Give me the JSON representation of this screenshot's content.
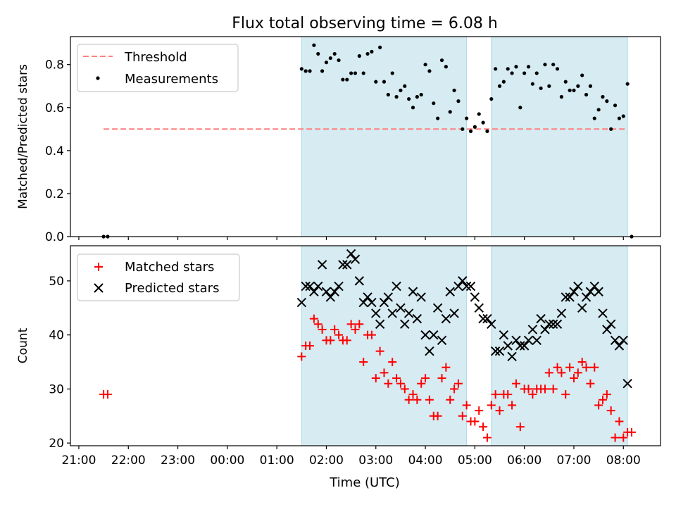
{
  "chart_data": [
    {
      "type": "scatter",
      "title": "Flux total observing time = 6.08 h",
      "xlabel": "",
      "ylabel": "Matched/Predicted stars",
      "ylim": [
        0,
        0.93
      ],
      "y_ticks": [
        "0.0",
        "0.2",
        "0.4",
        "0.6",
        "0.8"
      ],
      "y_tick_values": [
        0,
        0.2,
        0.4,
        0.6,
        0.8
      ],
      "xlim_hours": [
        20.83,
        32.75
      ],
      "grid": false,
      "legend_position": "top-left",
      "observing_windows": [
        {
          "start": "01:30",
          "end": "04:50"
        },
        {
          "start": "05:20",
          "end": "08:05"
        }
      ],
      "series": [
        {
          "name": "Threshold",
          "kind": "dashed-line",
          "color": "#ff7f7f",
          "value": 0.5,
          "x_range": [
            "21:30",
            "08:05"
          ]
        },
        {
          "name": "Measurements",
          "kind": "scatter",
          "color": "#000000",
          "points": [
            [
              "21:30",
              0.0
            ],
            [
              "21:35",
              0.0
            ],
            [
              "01:30",
              0.78
            ],
            [
              "01:35",
              0.77
            ],
            [
              "01:40",
              0.77
            ],
            [
              "01:45",
              0.89
            ],
            [
              "01:50",
              0.85
            ],
            [
              "01:55",
              0.77
            ],
            [
              "02:00",
              0.81
            ],
            [
              "02:05",
              0.83
            ],
            [
              "02:10",
              0.85
            ],
            [
              "02:15",
              0.82
            ],
            [
              "02:20",
              0.73
            ],
            [
              "02:25",
              0.73
            ],
            [
              "02:30",
              0.76
            ],
            [
              "02:35",
              0.76
            ],
            [
              "02:40",
              0.84
            ],
            [
              "02:45",
              0.76
            ],
            [
              "02:50",
              0.85
            ],
            [
              "02:55",
              0.86
            ],
            [
              "03:00",
              0.72
            ],
            [
              "03:05",
              0.88
            ],
            [
              "03:10",
              0.72
            ],
            [
              "03:15",
              0.66
            ],
            [
              "03:20",
              0.76
            ],
            [
              "03:25",
              0.65
            ],
            [
              "03:30",
              0.68
            ],
            [
              "03:35",
              0.7
            ],
            [
              "03:40",
              0.64
            ],
            [
              "03:45",
              0.6
            ],
            [
              "03:50",
              0.65
            ],
            [
              "03:55",
              0.66
            ],
            [
              "04:00",
              0.8
            ],
            [
              "04:05",
              0.77
            ],
            [
              "04:10",
              0.62
            ],
            [
              "04:15",
              0.55
            ],
            [
              "04:20",
              0.82
            ],
            [
              "04:25",
              0.79
            ],
            [
              "04:30",
              0.58
            ],
            [
              "04:35",
              0.68
            ],
            [
              "04:40",
              0.63
            ],
            [
              "04:45",
              0.5
            ],
            [
              "04:50",
              0.55
            ],
            [
              "04:55",
              0.49
            ],
            [
              "05:00",
              0.51
            ],
            [
              "05:05",
              0.57
            ],
            [
              "05:10",
              0.53
            ],
            [
              "05:15",
              0.49
            ],
            [
              "05:20",
              0.64
            ],
            [
              "05:25",
              0.78
            ],
            [
              "05:30",
              0.7
            ],
            [
              "05:35",
              0.72
            ],
            [
              "05:40",
              0.78
            ],
            [
              "05:45",
              0.76
            ],
            [
              "05:50",
              0.79
            ],
            [
              "05:55",
              0.6
            ],
            [
              "06:00",
              0.76
            ],
            [
              "06:05",
              0.79
            ],
            [
              "06:10",
              0.71
            ],
            [
              "06:15",
              0.76
            ],
            [
              "06:20",
              0.69
            ],
            [
              "06:25",
              0.8
            ],
            [
              "06:30",
              0.7
            ],
            [
              "06:35",
              0.8
            ],
            [
              "06:40",
              0.78
            ],
            [
              "06:45",
              0.65
            ],
            [
              "06:50",
              0.72
            ],
            [
              "06:55",
              0.68
            ],
            [
              "07:00",
              0.68
            ],
            [
              "07:05",
              0.7
            ],
            [
              "07:10",
              0.75
            ],
            [
              "07:15",
              0.66
            ],
            [
              "07:20",
              0.7
            ],
            [
              "07:25",
              0.55
            ],
            [
              "07:30",
              0.59
            ],
            [
              "07:35",
              0.65
            ],
            [
              "07:40",
              0.63
            ],
            [
              "07:45",
              0.5
            ],
            [
              "07:50",
              0.61
            ],
            [
              "07:55",
              0.55
            ],
            [
              "08:00",
              0.56
            ],
            [
              "08:05",
              0.71
            ],
            [
              "08:10",
              0.0
            ]
          ]
        }
      ]
    },
    {
      "type": "scatter",
      "xlabel": "Time (UTC)",
      "ylabel": "Count",
      "ylim": [
        19.5,
        56.5
      ],
      "y_ticks": [
        "20",
        "30",
        "40",
        "50"
      ],
      "y_tick_values": [
        20,
        30,
        40,
        50
      ],
      "x_ticks": [
        "21:00",
        "22:00",
        "23:00",
        "00:00",
        "01:00",
        "02:00",
        "03:00",
        "04:00",
        "05:00",
        "06:00",
        "07:00",
        "08:00"
      ],
      "x_tick_hours": [
        21,
        22,
        23,
        24,
        25,
        26,
        27,
        28,
        29,
        30,
        31,
        32
      ],
      "xlim_hours": [
        20.83,
        32.75
      ],
      "grid": false,
      "legend_position": "top-left",
      "observing_windows": [
        {
          "start": "01:30",
          "end": "04:50"
        },
        {
          "start": "05:20",
          "end": "08:05"
        }
      ],
      "series": [
        {
          "name": "Matched stars",
          "marker": "plus",
          "color": "#ff0000",
          "points": [
            [
              "21:30",
              29
            ],
            [
              "21:35",
              29
            ],
            [
              "01:30",
              36
            ],
            [
              "01:35",
              38
            ],
            [
              "01:40",
              38
            ],
            [
              "01:45",
              43
            ],
            [
              "01:50",
              42
            ],
            [
              "01:55",
              41
            ],
            [
              "02:00",
              39
            ],
            [
              "02:05",
              39
            ],
            [
              "02:10",
              41
            ],
            [
              "02:15",
              40
            ],
            [
              "02:20",
              39
            ],
            [
              "02:25",
              39
            ],
            [
              "02:30",
              42
            ],
            [
              "02:35",
              41
            ],
            [
              "02:40",
              42
            ],
            [
              "02:45",
              35
            ],
            [
              "02:50",
              40
            ],
            [
              "02:55",
              40
            ],
            [
              "03:00",
              32
            ],
            [
              "03:05",
              37
            ],
            [
              "03:10",
              33
            ],
            [
              "03:15",
              31
            ],
            [
              "03:20",
              35
            ],
            [
              "03:25",
              32
            ],
            [
              "03:30",
              31
            ],
            [
              "03:35",
              30
            ],
            [
              "03:40",
              28
            ],
            [
              "03:45",
              29
            ],
            [
              "03:50",
              28
            ],
            [
              "03:55",
              31
            ],
            [
              "04:00",
              32
            ],
            [
              "04:05",
              28
            ],
            [
              "04:10",
              25
            ],
            [
              "04:15",
              25
            ],
            [
              "04:20",
              32
            ],
            [
              "04:25",
              34
            ],
            [
              "04:30",
              28
            ],
            [
              "04:35",
              30
            ],
            [
              "04:40",
              31
            ],
            [
              "04:45",
              25
            ],
            [
              "04:50",
              27
            ],
            [
              "04:55",
              24
            ],
            [
              "05:00",
              24
            ],
            [
              "05:05",
              26
            ],
            [
              "05:10",
              23
            ],
            [
              "05:15",
              21
            ],
            [
              "05:20",
              27
            ],
            [
              "05:25",
              29
            ],
            [
              "05:30",
              26
            ],
            [
              "05:35",
              29
            ],
            [
              "05:40",
              29
            ],
            [
              "05:45",
              27
            ],
            [
              "05:50",
              31
            ],
            [
              "05:55",
              23
            ],
            [
              "06:00",
              30
            ],
            [
              "06:05",
              30
            ],
            [
              "06:10",
              29
            ],
            [
              "06:15",
              30
            ],
            [
              "06:20",
              30
            ],
            [
              "06:25",
              30
            ],
            [
              "06:30",
              33
            ],
            [
              "06:35",
              30
            ],
            [
              "06:40",
              34
            ],
            [
              "06:45",
              33
            ],
            [
              "06:50",
              29
            ],
            [
              "06:55",
              34
            ],
            [
              "07:00",
              32
            ],
            [
              "07:05",
              33
            ],
            [
              "07:10",
              35
            ],
            [
              "07:15",
              34
            ],
            [
              "07:20",
              31
            ],
            [
              "07:25",
              34
            ],
            [
              "07:30",
              27
            ],
            [
              "07:35",
              28
            ],
            [
              "07:40",
              29
            ],
            [
              "07:45",
              26
            ],
            [
              "07:50",
              21
            ],
            [
              "07:55",
              24
            ],
            [
              "08:00",
              21
            ],
            [
              "08:05",
              22
            ],
            [
              "08:10",
              22
            ]
          ]
        },
        {
          "name": "Predicted stars",
          "marker": "x",
          "color": "#000000",
          "points": [
            [
              "01:30",
              46
            ],
            [
              "01:35",
              49
            ],
            [
              "01:40",
              49
            ],
            [
              "01:45",
              48
            ],
            [
              "01:50",
              49
            ],
            [
              "01:55",
              53
            ],
            [
              "02:00",
              48
            ],
            [
              "02:05",
              47
            ],
            [
              "02:10",
              48
            ],
            [
              "02:15",
              49
            ],
            [
              "02:20",
              53
            ],
            [
              "02:25",
              53
            ],
            [
              "02:30",
              55
            ],
            [
              "02:35",
              54
            ],
            [
              "02:40",
              50
            ],
            [
              "02:45",
              46
            ],
            [
              "02:50",
              47
            ],
            [
              "02:55",
              46
            ],
            [
              "03:00",
              44
            ],
            [
              "03:05",
              42
            ],
            [
              "03:10",
              46
            ],
            [
              "03:15",
              47
            ],
            [
              "03:20",
              44
            ],
            [
              "03:25",
              49
            ],
            [
              "03:30",
              45
            ],
            [
              "03:35",
              42
            ],
            [
              "03:40",
              44
            ],
            [
              "03:45",
              48
            ],
            [
              "03:50",
              43
            ],
            [
              "03:55",
              47
            ],
            [
              "04:00",
              40
            ],
            [
              "04:05",
              37
            ],
            [
              "04:10",
              40
            ],
            [
              "04:15",
              45
            ],
            [
              "04:20",
              39
            ],
            [
              "04:25",
              43
            ],
            [
              "04:30",
              48
            ],
            [
              "04:35",
              44
            ],
            [
              "04:40",
              49
            ],
            [
              "04:45",
              50
            ],
            [
              "04:50",
              49
            ],
            [
              "04:55",
              49
            ],
            [
              "05:00",
              47
            ],
            [
              "05:05",
              45
            ],
            [
              "05:10",
              43
            ],
            [
              "05:15",
              43
            ],
            [
              "05:20",
              42
            ],
            [
              "05:25",
              37
            ],
            [
              "05:30",
              37
            ],
            [
              "05:35",
              40
            ],
            [
              "05:40",
              38
            ],
            [
              "05:45",
              36
            ],
            [
              "05:50",
              39
            ],
            [
              "05:55",
              38
            ],
            [
              "06:00",
              38
            ],
            [
              "06:05",
              39
            ],
            [
              "06:10",
              41
            ],
            [
              "06:15",
              39
            ],
            [
              "06:20",
              43
            ],
            [
              "06:25",
              41
            ],
            [
              "06:30",
              42
            ],
            [
              "06:35",
              42
            ],
            [
              "06:40",
              42
            ],
            [
              "06:45",
              44
            ],
            [
              "06:50",
              47
            ],
            [
              "06:55",
              47
            ],
            [
              "07:00",
              48
            ],
            [
              "07:05",
              49
            ],
            [
              "07:10",
              45
            ],
            [
              "07:15",
              47
            ],
            [
              "07:20",
              48
            ],
            [
              "07:25",
              49
            ],
            [
              "07:30",
              48
            ],
            [
              "07:35",
              44
            ],
            [
              "07:40",
              41
            ],
            [
              "07:45",
              42
            ],
            [
              "07:50",
              39
            ],
            [
              "07:55",
              38
            ],
            [
              "08:00",
              39
            ],
            [
              "08:05",
              31
            ]
          ]
        }
      ]
    }
  ]
}
